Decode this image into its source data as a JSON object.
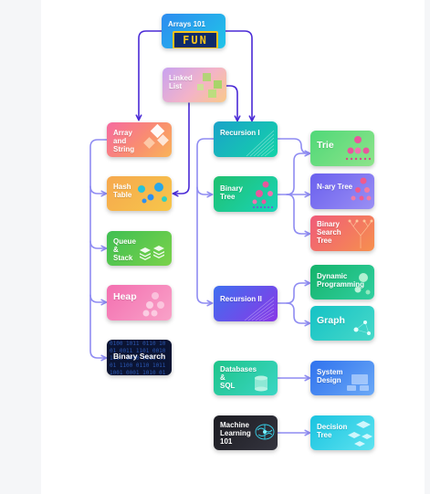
{
  "colors": {
    "connector": "#8f8cf2",
    "connector_primary": "#4a2ad6",
    "panel_bg": "#ffffff",
    "page_bg": "#f5f6f8"
  },
  "cards": {
    "arrays_101": {
      "label": "Arrays 101",
      "badge": "FUN"
    },
    "linked_list": {
      "label": "Linked\nList"
    },
    "array_and_string": {
      "label": "Array\nand\nString"
    },
    "hash_table": {
      "label": "Hash\nTable"
    },
    "queue_and_stack": {
      "label": "Queue\n&\nStack"
    },
    "heap": {
      "label": "Heap"
    },
    "binary_search": {
      "label": "Binary Search",
      "digits": "0100 1011 0110 1001 0011 1101 0010 1110 1000 0111 0101 1100 0110 1011 1001 0001 1010 0110 1101 0011"
    },
    "recursion_1": {
      "label": "Recursion I"
    },
    "binary_tree": {
      "label": "Binary\nTree"
    },
    "recursion_2": {
      "label": "Recursion II"
    },
    "trie": {
      "label": "Trie"
    },
    "nary_tree": {
      "label": "N-ary Tree"
    },
    "binary_search_tree": {
      "label": "Binary\nSearch\nTree"
    },
    "dynamic_programming": {
      "label": "Dynamic\nProgramming"
    },
    "graph": {
      "label": "Graph"
    },
    "databases_sql": {
      "label": "Databases\n&\nSQL"
    },
    "system_design": {
      "label": "System\nDesign"
    },
    "machine_learning_101": {
      "label": "Machine\nLearning\n101"
    },
    "decision_tree": {
      "label": "Decision\nTree"
    }
  }
}
